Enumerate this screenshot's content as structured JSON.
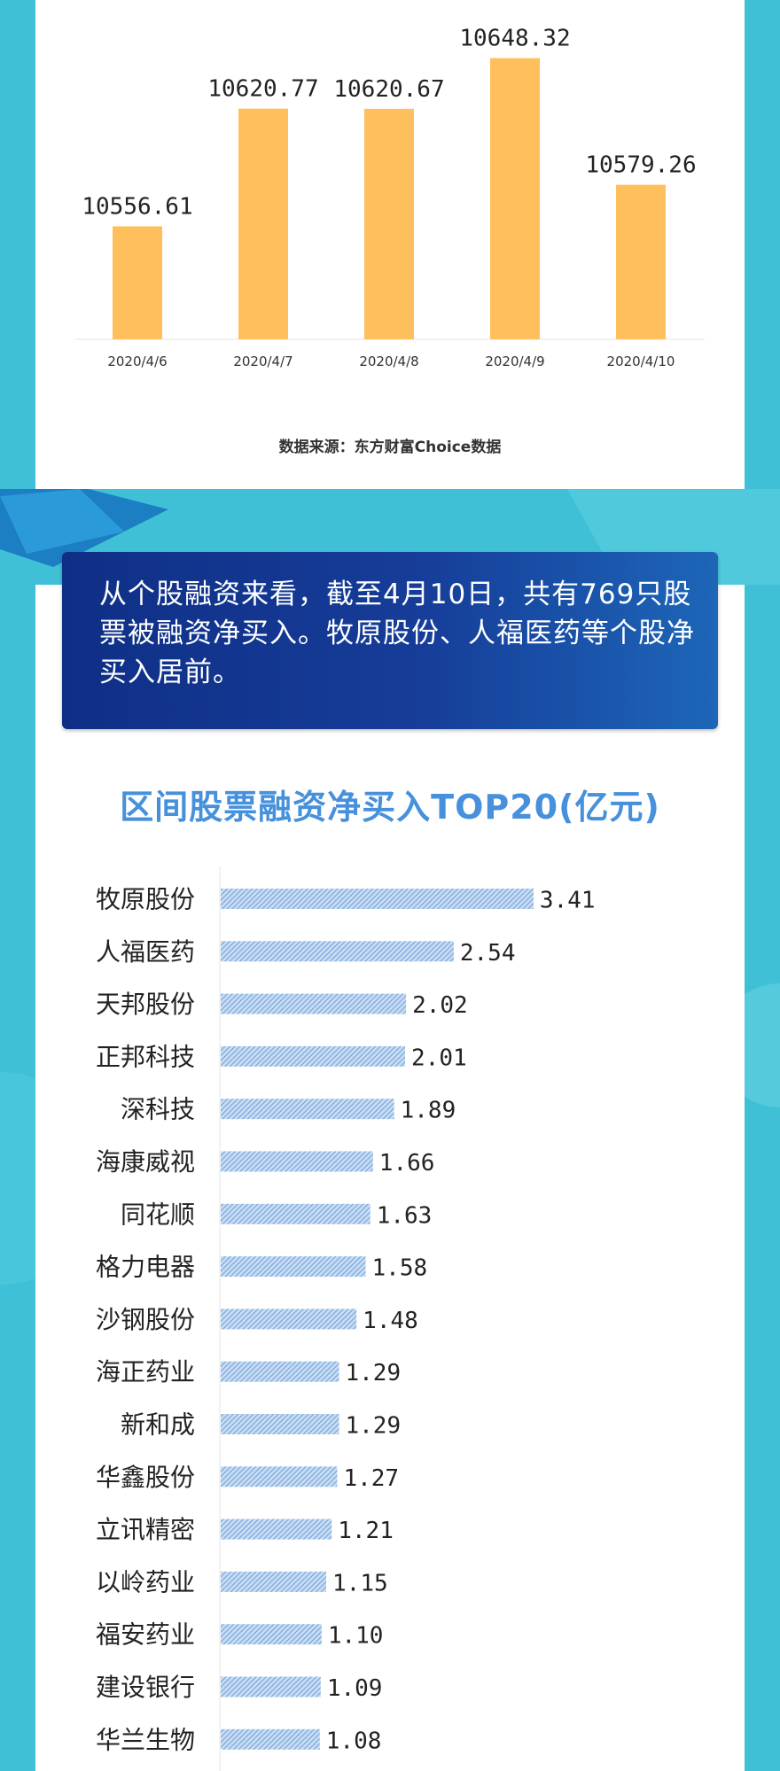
{
  "source_note": "数据来源：东方财富Choice数据",
  "summary_text": "从个股融资来看，截至4月10日，共有769只股票被融资净买入。牧原股份、人福医药等个股净买入居前。",
  "colors": {
    "background": "#3fc0d6",
    "bar_top": "#ffbf5c",
    "bar_bottom": "#8fb8e6",
    "title": "#4690dc",
    "summary_bg": "#163d99"
  },
  "chart_data": [
    {
      "type": "bar",
      "title": "",
      "xlabel": "",
      "ylabel": "",
      "categories": [
        "2020/4/6",
        "2020/4/7",
        "2020/4/8",
        "2020/4/9",
        "2020/4/10"
      ],
      "values": [
        10556.61,
        10620.77,
        10620.67,
        10648.32,
        10579.26
      ],
      "data_labels": [
        "10556.61",
        "10620.77",
        "10620.67",
        "10648.32",
        "10579.26"
      ],
      "grid": false,
      "legend": "none"
    },
    {
      "type": "bar",
      "orientation": "horizontal",
      "title": "区间股票融资净买入TOP20(亿元)",
      "categories": [
        "牧原股份",
        "人福医药",
        "天邦股份",
        "正邦科技",
        "深科技",
        "海康威视",
        "同花顺",
        "格力电器",
        "沙钢股份",
        "海正药业",
        "新和成",
        "华鑫股份",
        "立讯精密",
        "以岭药业",
        "福安药业",
        "建设银行",
        "华兰生物"
      ],
      "values": [
        3.41,
        2.54,
        2.02,
        2.01,
        1.89,
        1.66,
        1.63,
        1.58,
        1.48,
        1.29,
        1.29,
        1.27,
        1.21,
        1.15,
        1.1,
        1.09,
        1.08
      ],
      "data_labels": [
        "3.41",
        "2.54",
        "2.02",
        "2.01",
        "1.89",
        "1.66",
        "1.63",
        "1.58",
        "1.48",
        "1.29",
        "1.29",
        "1.27",
        "1.21",
        "1.15",
        "1.10",
        "1.09",
        "1.08"
      ],
      "xlim": [
        0,
        4
      ],
      "grid": false,
      "legend": "none"
    }
  ]
}
